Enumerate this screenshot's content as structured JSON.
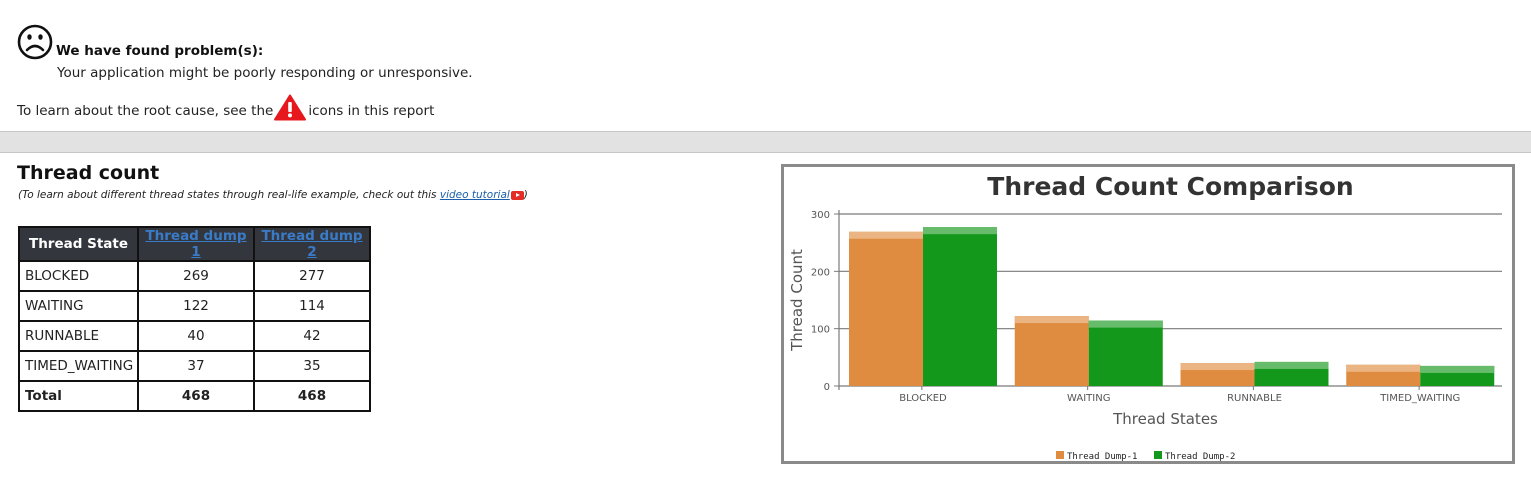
{
  "alert": {
    "title": "We have found problem(s):",
    "subtitle": "Your application might be poorly responding or unresponsive.",
    "learn_prefix": "To learn about the root cause, see the",
    "learn_suffix": "icons in this report"
  },
  "section": {
    "title": "Thread count",
    "note_prefix": "(To learn about different thread states through real-life example, check out this",
    "note_link": "video tutorial",
    "note_suffix": ")"
  },
  "table": {
    "headers": [
      "Thread State",
      "Thread dump 1",
      "Thread dump 2"
    ],
    "rows": [
      {
        "state": "BLOCKED",
        "dump1": "269",
        "dump2": "277"
      },
      {
        "state": "WAITING",
        "dump1": "122",
        "dump2": "114"
      },
      {
        "state": "RUNNABLE",
        "dump1": "40",
        "dump2": "42"
      },
      {
        "state": "TIMED_WAITING",
        "dump1": "37",
        "dump2": "35"
      },
      {
        "state": "Total",
        "dump1": "468",
        "dump2": "468"
      }
    ]
  },
  "chart_data": {
    "type": "bar",
    "title": "Thread Count Comparison",
    "xlabel": "Thread States",
    "ylabel": "Thread Count",
    "categories": [
      "BLOCKED",
      "WAITING",
      "RUNNABLE",
      "TIMED_WAITING"
    ],
    "series": [
      {
        "name": "Thread Dump-1",
        "values": [
          269,
          122,
          40,
          37
        ],
        "color": "#e08c40"
      },
      {
        "name": "Thread Dump-2",
        "values": [
          277,
          114,
          42,
          35
        ],
        "color": "#13981c"
      }
    ],
    "ylim": [
      0,
      300
    ],
    "yticks": [
      "0",
      "100",
      "200",
      "300"
    ],
    "grid": true,
    "legend": "bottom-center"
  }
}
